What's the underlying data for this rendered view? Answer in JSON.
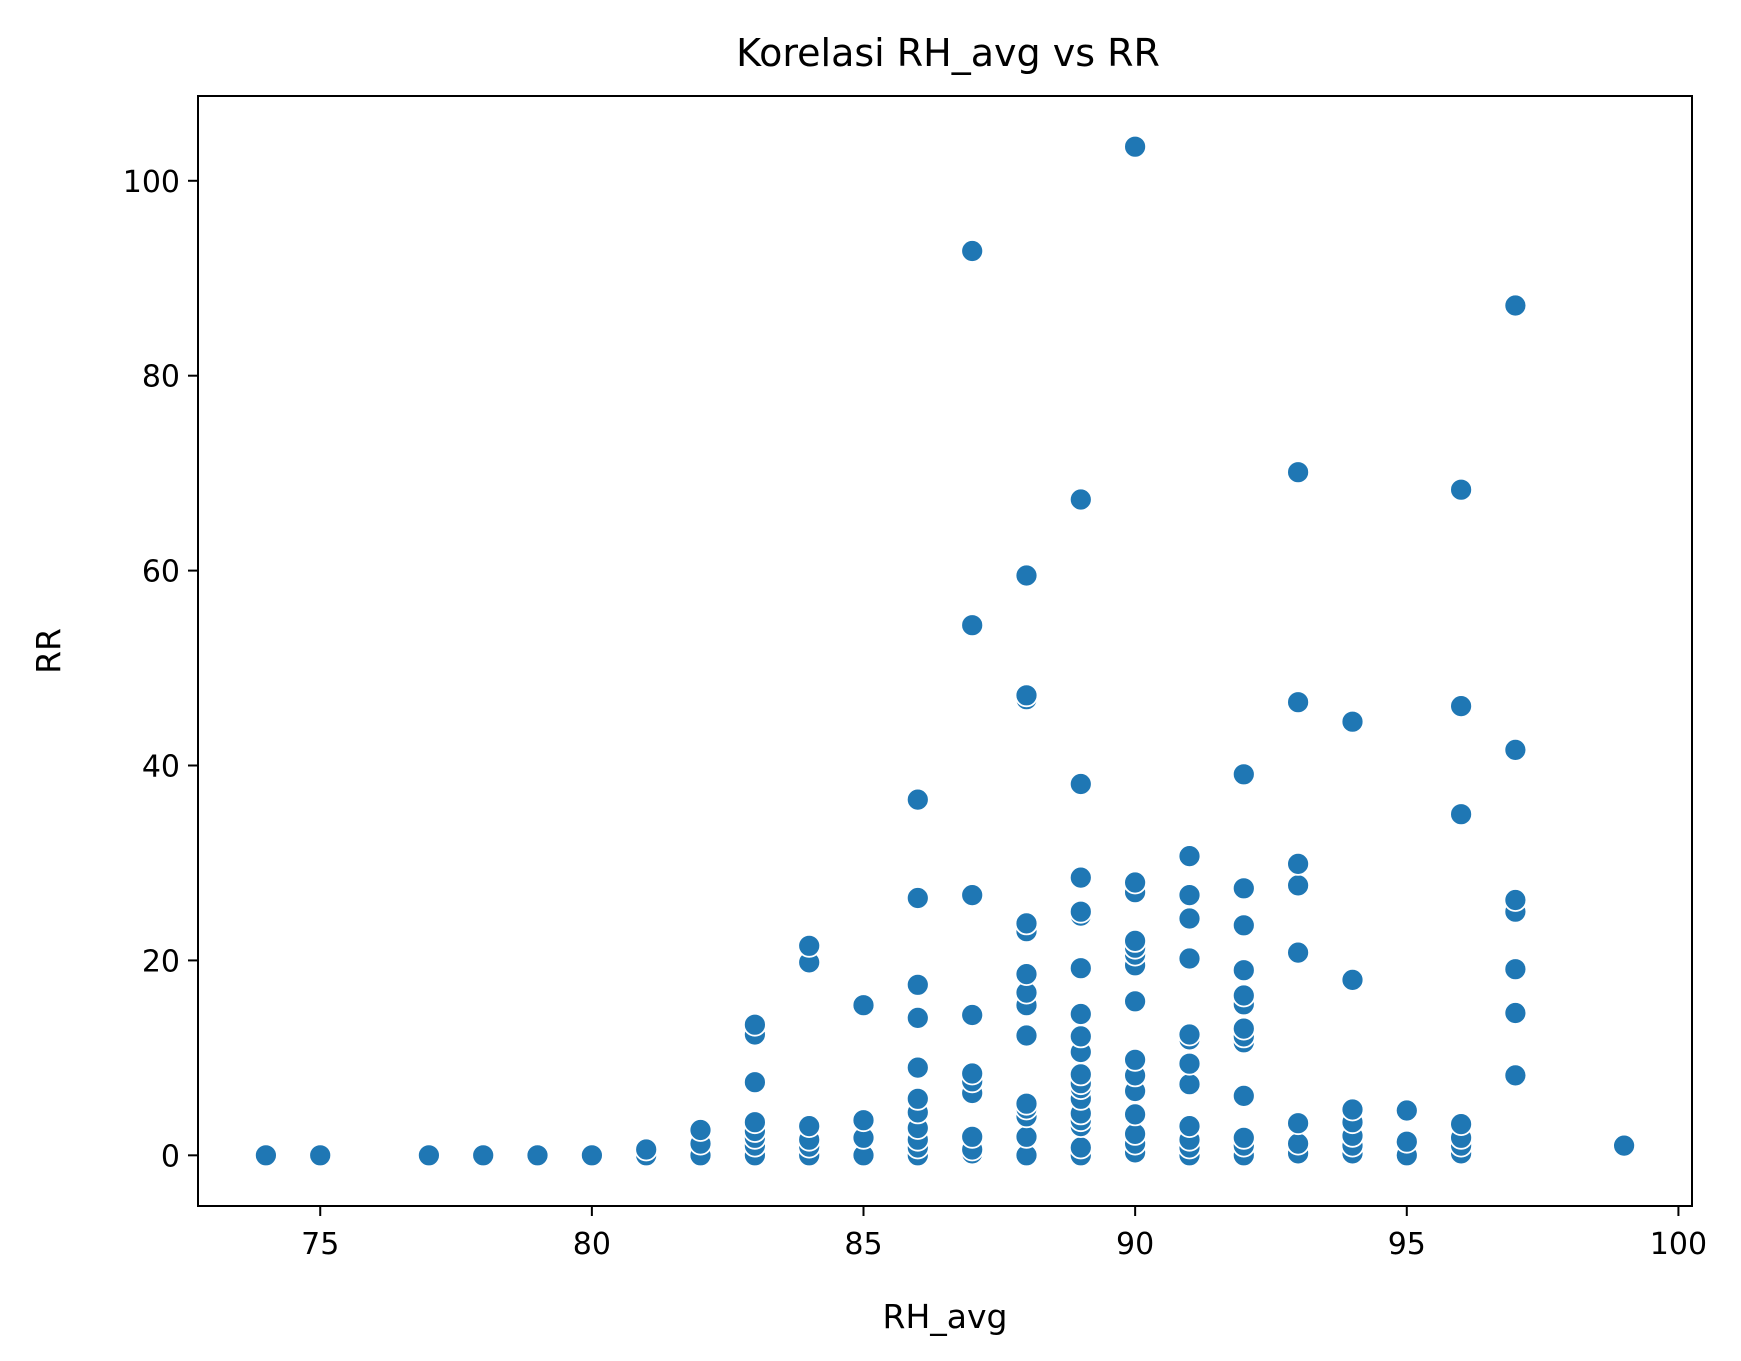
{
  "chart_data": {
    "type": "scatter",
    "title": "Korelasi RH_avg vs RR",
    "xlabel": "RH_avg",
    "ylabel": "RR",
    "xlim": [
      72.75,
      100.25
    ],
    "ylim": [
      -5.2,
      108.7
    ],
    "xticks": [
      75,
      80,
      85,
      90,
      95,
      100
    ],
    "yticks": [
      0,
      20,
      40,
      60,
      80,
      100
    ],
    "grid": false,
    "legend": "none",
    "color": "#1f77b4",
    "points": [
      {
        "x": 74,
        "y": 0
      },
      {
        "x": 75,
        "y": 0
      },
      {
        "x": 77,
        "y": 0
      },
      {
        "x": 78,
        "y": 0
      },
      {
        "x": 79,
        "y": 0
      },
      {
        "x": 80,
        "y": 0
      },
      {
        "x": 81,
        "y": 0
      },
      {
        "x": 81,
        "y": 0.6
      },
      {
        "x": 82,
        "y": 0
      },
      {
        "x": 82,
        "y": 1.2
      },
      {
        "x": 82,
        "y": 2.6
      },
      {
        "x": 83,
        "y": 0
      },
      {
        "x": 83,
        "y": 1.0
      },
      {
        "x": 83,
        "y": 1.8
      },
      {
        "x": 83,
        "y": 2.5
      },
      {
        "x": 83,
        "y": 3.4
      },
      {
        "x": 83,
        "y": 7.5
      },
      {
        "x": 83,
        "y": 12.4
      },
      {
        "x": 83,
        "y": 13.4
      },
      {
        "x": 84,
        "y": 0
      },
      {
        "x": 84,
        "y": 0.9
      },
      {
        "x": 84,
        "y": 1.6
      },
      {
        "x": 84,
        "y": 3.0
      },
      {
        "x": 84,
        "y": 19.8
      },
      {
        "x": 84,
        "y": 21.5
      },
      {
        "x": 85,
        "y": 0
      },
      {
        "x": 85,
        "y": 1.8
      },
      {
        "x": 85,
        "y": 3.6
      },
      {
        "x": 85,
        "y": 15.4
      },
      {
        "x": 86,
        "y": 0
      },
      {
        "x": 86,
        "y": 0.8
      },
      {
        "x": 86,
        "y": 1.6
      },
      {
        "x": 86,
        "y": 2.8
      },
      {
        "x": 86,
        "y": 4.4
      },
      {
        "x": 86,
        "y": 5.8
      },
      {
        "x": 86,
        "y": 9.0
      },
      {
        "x": 86,
        "y": 14.1
      },
      {
        "x": 86,
        "y": 17.5
      },
      {
        "x": 86,
        "y": 26.4
      },
      {
        "x": 86,
        "y": 36.5
      },
      {
        "x": 87,
        "y": 0.2
      },
      {
        "x": 87,
        "y": 0.6
      },
      {
        "x": 87,
        "y": 1.9
      },
      {
        "x": 87,
        "y": 6.4
      },
      {
        "x": 87,
        "y": 7.6
      },
      {
        "x": 87,
        "y": 8.4
      },
      {
        "x": 87,
        "y": 14.4
      },
      {
        "x": 87,
        "y": 26.7
      },
      {
        "x": 87,
        "y": 54.4
      },
      {
        "x": 87,
        "y": 92.8
      },
      {
        "x": 88,
        "y": 0
      },
      {
        "x": 88,
        "y": 1.9
      },
      {
        "x": 88,
        "y": 4.0
      },
      {
        "x": 88,
        "y": 4.8
      },
      {
        "x": 88,
        "y": 5.3
      },
      {
        "x": 88,
        "y": 12.3
      },
      {
        "x": 88,
        "y": 15.4
      },
      {
        "x": 88,
        "y": 16.7
      },
      {
        "x": 88,
        "y": 18.6
      },
      {
        "x": 88,
        "y": 23.0
      },
      {
        "x": 88,
        "y": 23.8
      },
      {
        "x": 88,
        "y": 46.8
      },
      {
        "x": 88,
        "y": 47.2
      },
      {
        "x": 88,
        "y": 59.5
      },
      {
        "x": 89,
        "y": 0
      },
      {
        "x": 89,
        "y": 0.8
      },
      {
        "x": 89,
        "y": 3.0
      },
      {
        "x": 89,
        "y": 3.6
      },
      {
        "x": 89,
        "y": 4.3
      },
      {
        "x": 89,
        "y": 5.8
      },
      {
        "x": 89,
        "y": 6.9
      },
      {
        "x": 89,
        "y": 7.4
      },
      {
        "x": 89,
        "y": 8.3
      },
      {
        "x": 89,
        "y": 10.6
      },
      {
        "x": 89,
        "y": 12.2
      },
      {
        "x": 89,
        "y": 14.5
      },
      {
        "x": 89,
        "y": 19.2
      },
      {
        "x": 89,
        "y": 24.6
      },
      {
        "x": 89,
        "y": 25.0
      },
      {
        "x": 89,
        "y": 28.5
      },
      {
        "x": 89,
        "y": 38.1
      },
      {
        "x": 89,
        "y": 67.3
      },
      {
        "x": 90,
        "y": 0.3
      },
      {
        "x": 90,
        "y": 1.2
      },
      {
        "x": 90,
        "y": 2.2
      },
      {
        "x": 90,
        "y": 4.2
      },
      {
        "x": 90,
        "y": 6.6
      },
      {
        "x": 90,
        "y": 8.2
      },
      {
        "x": 90,
        "y": 9.8
      },
      {
        "x": 90,
        "y": 15.8
      },
      {
        "x": 90,
        "y": 19.5
      },
      {
        "x": 90,
        "y": 20.6
      },
      {
        "x": 90,
        "y": 21.3
      },
      {
        "x": 90,
        "y": 22.0
      },
      {
        "x": 90,
        "y": 27.0
      },
      {
        "x": 90,
        "y": 28.0
      },
      {
        "x": 90,
        "y": 103.5
      },
      {
        "x": 91,
        "y": 0
      },
      {
        "x": 91,
        "y": 0.8
      },
      {
        "x": 91,
        "y": 1.6
      },
      {
        "x": 91,
        "y": 3.0
      },
      {
        "x": 91,
        "y": 7.3
      },
      {
        "x": 91,
        "y": 9.4
      },
      {
        "x": 91,
        "y": 11.9
      },
      {
        "x": 91,
        "y": 12.4
      },
      {
        "x": 91,
        "y": 20.2
      },
      {
        "x": 91,
        "y": 24.3
      },
      {
        "x": 91,
        "y": 26.7
      },
      {
        "x": 91,
        "y": 30.7
      },
      {
        "x": 92,
        "y": 0
      },
      {
        "x": 92,
        "y": 1.0
      },
      {
        "x": 92,
        "y": 1.8
      },
      {
        "x": 92,
        "y": 6.1
      },
      {
        "x": 92,
        "y": 11.6
      },
      {
        "x": 92,
        "y": 12.2
      },
      {
        "x": 92,
        "y": 13.0
      },
      {
        "x": 92,
        "y": 15.5
      },
      {
        "x": 92,
        "y": 16.4
      },
      {
        "x": 92,
        "y": 19.0
      },
      {
        "x": 92,
        "y": 23.6
      },
      {
        "x": 92,
        "y": 27.4
      },
      {
        "x": 92,
        "y": 39.1
      },
      {
        "x": 93,
        "y": 0.2
      },
      {
        "x": 93,
        "y": 1.2
      },
      {
        "x": 93,
        "y": 3.3
      },
      {
        "x": 93,
        "y": 20.8
      },
      {
        "x": 93,
        "y": 27.7
      },
      {
        "x": 93,
        "y": 29.9
      },
      {
        "x": 93,
        "y": 46.5
      },
      {
        "x": 93,
        "y": 70.1
      },
      {
        "x": 94,
        "y": 0.2
      },
      {
        "x": 94,
        "y": 1.0
      },
      {
        "x": 94,
        "y": 2.0
      },
      {
        "x": 94,
        "y": 3.4
      },
      {
        "x": 94,
        "y": 4.7
      },
      {
        "x": 94,
        "y": 18.0
      },
      {
        "x": 94,
        "y": 44.5
      },
      {
        "x": 95,
        "y": 0
      },
      {
        "x": 95,
        "y": 1.4
      },
      {
        "x": 95,
        "y": 4.6
      },
      {
        "x": 96,
        "y": 0.2
      },
      {
        "x": 96,
        "y": 1.0
      },
      {
        "x": 96,
        "y": 1.8
      },
      {
        "x": 96,
        "y": 3.2
      },
      {
        "x": 96,
        "y": 35.0
      },
      {
        "x": 96,
        "y": 46.1
      },
      {
        "x": 96,
        "y": 68.3
      },
      {
        "x": 97,
        "y": 8.2
      },
      {
        "x": 97,
        "y": 14.6
      },
      {
        "x": 97,
        "y": 19.1
      },
      {
        "x": 97,
        "y": 25.0
      },
      {
        "x": 97,
        "y": 26.2
      },
      {
        "x": 97,
        "y": 41.6
      },
      {
        "x": 97,
        "y": 87.2
      },
      {
        "x": 99,
        "y": 1.0
      }
    ]
  }
}
